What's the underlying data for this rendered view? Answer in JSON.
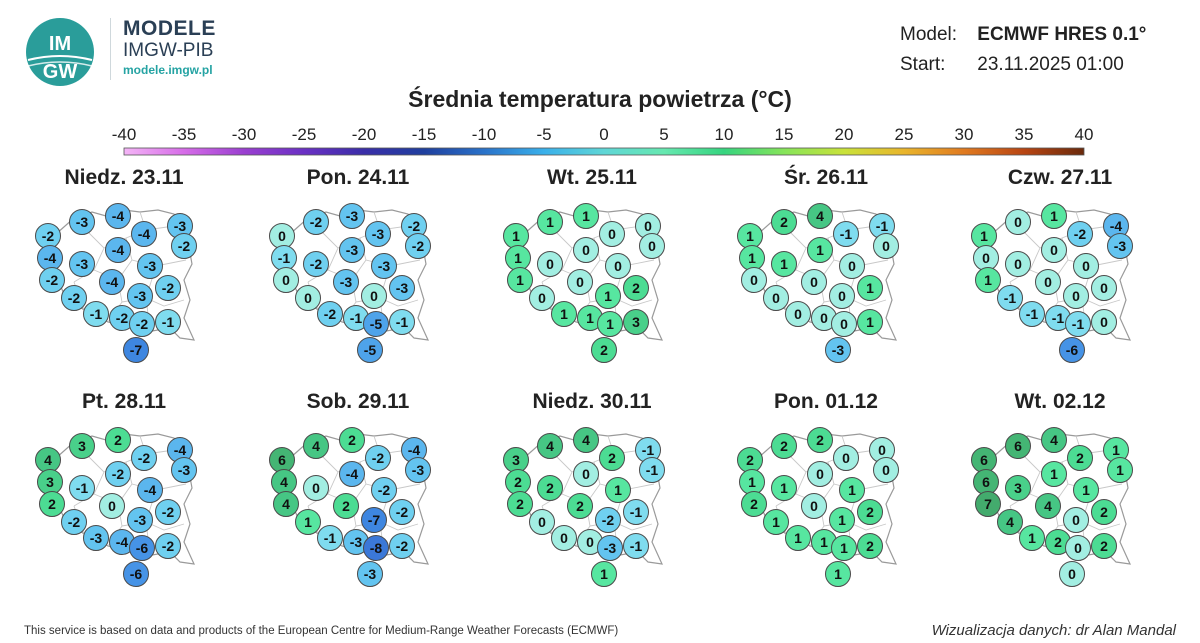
{
  "brand": {
    "logo_text_top": "IM",
    "logo_text_bottom": "GW",
    "title": "MODELE",
    "subtitle": "IMGW-PIB",
    "url": "modele.imgw.pl"
  },
  "model": {
    "model_label": "Model:",
    "model_value": "ECMWF HRES 0.1°",
    "start_label": "Start:",
    "start_value": "23.11.2025 01:00"
  },
  "title": "Średnia temperatura powietrza (°C)",
  "scale": {
    "ticks": [
      "-40",
      "-35",
      "-30",
      "-25",
      "-20",
      "-15",
      "-10",
      "-5",
      "0",
      "5",
      "10",
      "15",
      "20",
      "25",
      "30",
      "35",
      "40"
    ],
    "stops": [
      "#f4b5f6",
      "#d66ce8",
      "#9a3fd0",
      "#6a30c4",
      "#3a2ea8",
      "#1f3f9e",
      "#2a72c9",
      "#3ab0ea",
      "#5fd6d6",
      "#66e8b0",
      "#36d47f",
      "#86e45a",
      "#c9e23a",
      "#e9b52c",
      "#e07a20",
      "#b84513",
      "#6a2a0c"
    ]
  },
  "days": [
    {
      "label": "Niedz. 23.11",
      "values": [
        -3,
        -4,
        -3,
        -2,
        -4,
        -2,
        -4,
        -3,
        -4,
        -2,
        -4,
        -3,
        -2,
        -3,
        -2,
        -1,
        -2,
        -2,
        -1,
        -7
      ]
    },
    {
      "label": "Pon. 24.11",
      "values": [
        -2,
        -3,
        -2,
        0,
        -3,
        -2,
        -1,
        -2,
        -3,
        0,
        -3,
        -3,
        0,
        0,
        -3,
        -2,
        -1,
        -5,
        -1,
        -5
      ]
    },
    {
      "label": "Wt. 25.11",
      "values": [
        1,
        1,
        0,
        1,
        0,
        0,
        1,
        0,
        0,
        1,
        0,
        0,
        0,
        1,
        2,
        1,
        1,
        1,
        3,
        2
      ]
    },
    {
      "label": "Śr. 26.11",
      "values": [
        2,
        4,
        -1,
        1,
        -1,
        0,
        1,
        1,
        1,
        0,
        0,
        0,
        0,
        0,
        1,
        0,
        0,
        0,
        1,
        -3
      ]
    },
    {
      "label": "Czw. 27.11",
      "values": [
        0,
        1,
        -4,
        1,
        -2,
        -3,
        0,
        0,
        0,
        1,
        0,
        0,
        -1,
        0,
        0,
        -1,
        -1,
        -1,
        0,
        -6
      ]
    },
    {
      "label": "Pt. 28.11",
      "values": [
        3,
        2,
        -4,
        4,
        -2,
        -3,
        3,
        -1,
        -2,
        2,
        0,
        -4,
        -2,
        -3,
        -2,
        -3,
        -4,
        -6,
        -2,
        -6
      ]
    },
    {
      "label": "Sob. 29.11",
      "values": [
        4,
        2,
        -4,
        6,
        -2,
        -3,
        4,
        0,
        -4,
        4,
        2,
        -2,
        1,
        -7,
        -2,
        -1,
        -3,
        -8,
        -2,
        -3
      ]
    },
    {
      "label": "Niedz. 30.11",
      "values": [
        4,
        4,
        -1,
        3,
        2,
        -1,
        2,
        2,
        0,
        2,
        2,
        1,
        0,
        -2,
        -1,
        0,
        0,
        -3,
        -1,
        1
      ]
    },
    {
      "label": "Pon. 01.12",
      "values": [
        2,
        2,
        0,
        2,
        0,
        0,
        1,
        1,
        0,
        2,
        0,
        1,
        1,
        1,
        2,
        1,
        1,
        1,
        2,
        1
      ]
    },
    {
      "label": "Wt. 02.12",
      "values": [
        6,
        4,
        1,
        6,
        2,
        1,
        6,
        3,
        1,
        7,
        4,
        1,
        4,
        0,
        2,
        1,
        2,
        0,
        2,
        0
      ]
    }
  ],
  "footer": {
    "source": "This service is based on data and products of the European Centre for Medium-Range Weather Forecasts (ECMWF)",
    "author": "Wizualizacja danych: dr Alan Mandal"
  }
}
